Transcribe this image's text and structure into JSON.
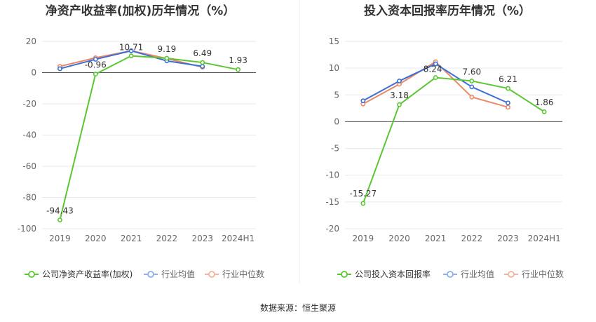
{
  "colors": {
    "company": "#5ac732",
    "avg": "#3b6fd6",
    "median": "#ee8763",
    "avg_legend": "#8fb0ea",
    "median_legend": "#f3b49f",
    "grid": "#e6e9ef",
    "axis": "#555555",
    "divider": "#eeeeee"
  },
  "source_text": "数据来源：恒生聚源",
  "chart_data": [
    {
      "type": "line",
      "title": "净资产收益率(加权)历年情况（%）",
      "categories": [
        "2019",
        "2020",
        "2021",
        "2022",
        "2023",
        "2024H1"
      ],
      "ylim": [
        -100,
        20
      ],
      "yticks": [
        20,
        0,
        -20,
        -40,
        -60,
        -80,
        -100
      ],
      "grid": true,
      "legend_position": "bottom",
      "series": [
        {
          "name": "公司净资产收益率(加权)",
          "values": [
            -94.43,
            -0.96,
            10.71,
            9.19,
            6.49,
            1.93
          ],
          "labels": [
            "-94.43",
            "-0.96",
            "10.71",
            "9.19",
            "6.49",
            "1.93"
          ]
        },
        {
          "name": "行业均值",
          "values": [
            2.5,
            8.5,
            14.0,
            7.5,
            4.0,
            null
          ]
        },
        {
          "name": "行业中位数",
          "values": [
            4.0,
            9.5,
            14.0,
            9.0,
            3.5,
            null
          ]
        }
      ]
    },
    {
      "type": "line",
      "title": "投入资本回报率历年情况（%）",
      "categories": [
        "2019",
        "2020",
        "2021",
        "2022",
        "2023",
        "2024H1"
      ],
      "ylim": [
        -20,
        15
      ],
      "yticks": [
        15,
        10,
        5,
        0,
        -5,
        -10,
        -15,
        -20
      ],
      "grid": true,
      "legend_position": "bottom",
      "series": [
        {
          "name": "公司投入资本回报率",
          "values": [
            -15.27,
            3.18,
            8.24,
            7.6,
            6.21,
            1.86
          ],
          "labels": [
            "-15.27",
            "3.18",
            "8.24",
            "7.60",
            "6.21",
            "1.86"
          ]
        },
        {
          "name": "行业均值",
          "values": [
            3.9,
            7.6,
            10.8,
            6.5,
            3.5,
            null
          ]
        },
        {
          "name": "行业中位数",
          "values": [
            3.3,
            7.0,
            11.2,
            4.6,
            2.7,
            null
          ]
        }
      ]
    }
  ]
}
